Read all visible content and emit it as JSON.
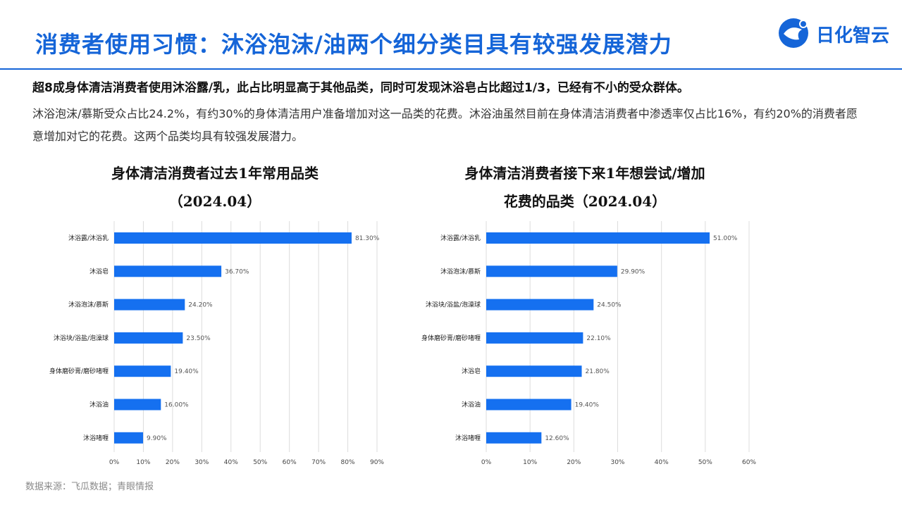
{
  "header": {
    "title": "消费者使用习惯：沐浴泡沫/油两个细分类目具有较强发展潜力",
    "logo_text": "日化智云",
    "accent": "#1565d8"
  },
  "lead_text": "超8成身体清洁消费者使用沐浴露/乳，此占比明显高于其他品类，同时可发现沐浴皂占比超过1/3，已经有不小的受众群体。",
  "body_text": "沐浴泡沫/慕斯受众占比24.2%，有约30%的身体清洁用户准备增加对这一品类的花费。沐浴油虽然目前在身体清洁消费者中渗透率仅占比16%，有约20%的消费者愿意增加对它的花费。这两个品类均具有较强发展潜力。",
  "source": "数据来源：飞瓜数据；青眼情报",
  "chart_data": [
    {
      "type": "bar",
      "orientation": "horizontal",
      "title_line1": "身体清洁消费者过去1年常用品类",
      "title_line2": "（2024.04）",
      "categories": [
        "沐浴露/沐浴乳",
        "沐浴皂",
        "沐浴泡沫/慕斯",
        "沐浴块/浴盐/泡澡球",
        "身体磨砂膏/磨砂啫喱",
        "沐浴油",
        "沐浴啫喱"
      ],
      "values": [
        81.3,
        36.7,
        24.2,
        23.5,
        19.4,
        16.0,
        9.9
      ],
      "value_labels": [
        "81.30%",
        "36.70%",
        "24.20%",
        "23.50%",
        "19.40%",
        "16.00%",
        "9.90%"
      ],
      "xlim": [
        0,
        90
      ],
      "xticks": [
        "0%",
        "10%",
        "20%",
        "30%",
        "40%",
        "50%",
        "60%",
        "70%",
        "80%",
        "90%"
      ],
      "grid": true,
      "bar_color": "#1570f0"
    },
    {
      "type": "bar",
      "orientation": "horizontal",
      "title_line1": "身体清洁消费者接下来1年想尝试/增加",
      "title_line2": "花费的品类（2024.04）",
      "categories": [
        "沐浴露/沐浴乳",
        "沐浴泡沫/慕斯",
        "沐浴块/浴盐/泡澡球",
        "身体磨砂膏/磨砂啫喱",
        "沐浴皂",
        "沐浴油",
        "沐浴啫喱"
      ],
      "values": [
        51.0,
        29.9,
        24.5,
        22.1,
        21.8,
        19.4,
        12.6
      ],
      "value_labels": [
        "51.00%",
        "29.90%",
        "24.50%",
        "22.10%",
        "21.80%",
        "19.40%",
        "12.60%"
      ],
      "xlim": [
        0,
        60
      ],
      "xticks": [
        "0%",
        "10%",
        "20%",
        "30%",
        "40%",
        "50%",
        "60%"
      ],
      "grid": true,
      "bar_color": "#1570f0"
    }
  ]
}
